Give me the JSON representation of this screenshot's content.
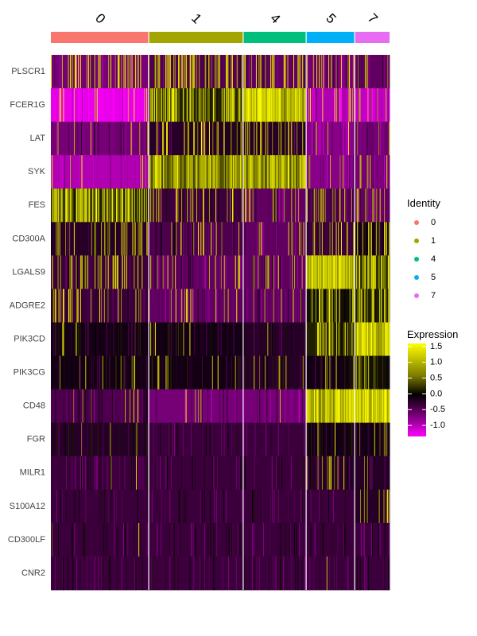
{
  "chart_data": {
    "type": "heatmap",
    "genes": [
      "PLSCR1",
      "FCER1G",
      "LAT",
      "SYK",
      "FES",
      "CD300A",
      "LGALS9",
      "ADGRE2",
      "PIK3CD",
      "PIK3CG",
      "CD48",
      "FGR",
      "MILR1",
      "S100A12",
      "CD300LF",
      "CNR2"
    ],
    "clusters": [
      {
        "label": "0",
        "cells": 230,
        "color": "#F8766D"
      },
      {
        "label": "1",
        "cells": 222,
        "color": "#A3A500"
      },
      {
        "label": "4",
        "cells": 148,
        "color": "#00BF7D"
      },
      {
        "label": "5",
        "cells": 114,
        "color": "#00B0F6"
      },
      {
        "label": "7",
        "cells": 82,
        "color": "#E76BF3"
      }
    ],
    "mean_expression": {
      "PLSCR1": [
        -0.6,
        -0.4,
        -0.5,
        -0.6,
        -0.5
      ],
      "FCER1G": [
        -1.2,
        0.2,
        0.9,
        -0.9,
        -1.0
      ],
      "LAT": [
        -0.6,
        -0.2,
        -0.2,
        -0.7,
        -0.6
      ],
      "SYK": [
        -0.9,
        0.5,
        0.5,
        -0.7,
        -0.6
      ],
      "FES": [
        0.2,
        -0.3,
        -0.5,
        -0.4,
        -0.5
      ],
      "CD300A": [
        -0.2,
        -0.4,
        -0.5,
        -0.3,
        -0.1
      ],
      "LGALS9": [
        -0.3,
        -0.5,
        -0.5,
        0.9,
        0.3
      ],
      "ADGRE2": [
        -0.3,
        -0.5,
        -0.5,
        0.1,
        0.2
      ],
      "PIK3CD": [
        -0.1,
        -0.1,
        -0.2,
        0.2,
        1.0
      ],
      "PIK3CG": [
        -0.1,
        -0.1,
        -0.2,
        -0.1,
        0.1
      ],
      "CD48": [
        -0.4,
        -0.6,
        -0.6,
        0.8,
        1.1
      ],
      "FGR": [
        -0.2,
        -0.3,
        -0.3,
        -0.1,
        -0.1
      ],
      "MILR1": [
        -0.3,
        -0.3,
        -0.3,
        -0.2,
        -0.2
      ],
      "S100A12": [
        -0.3,
        -0.3,
        -0.3,
        -0.3,
        -0.2
      ],
      "CD300LF": [
        -0.3,
        -0.3,
        -0.3,
        -0.3,
        -0.3
      ],
      "CNR2": [
        -0.3,
        -0.3,
        -0.3,
        -0.3,
        -0.3
      ]
    },
    "hot_fraction": {
      "PLSCR1": [
        0.18,
        0.22,
        0.2,
        0.15,
        0.15
      ],
      "FCER1G": [
        0.05,
        0.35,
        0.7,
        0.05,
        0.05
      ],
      "LAT": [
        0.03,
        0.1,
        0.1,
        0.02,
        0.03
      ],
      "SYK": [
        0.05,
        0.35,
        0.35,
        0.05,
        0.08
      ],
      "FES": [
        0.35,
        0.12,
        0.08,
        0.1,
        0.08
      ],
      "CD300A": [
        0.12,
        0.08,
        0.05,
        0.1,
        0.15
      ],
      "LGALS9": [
        0.15,
        0.06,
        0.06,
        0.65,
        0.35
      ],
      "ADGRE2": [
        0.12,
        0.05,
        0.05,
        0.2,
        0.25
      ],
      "PIK3CD": [
        0.02,
        0.02,
        0.01,
        0.2,
        0.55
      ],
      "PIK3CG": [
        0.02,
        0.03,
        0.02,
        0.08,
        0.12
      ],
      "CD48": [
        0.03,
        0.01,
        0.01,
        0.55,
        0.6
      ],
      "FGR": [
        0.03,
        0.0,
        0.0,
        0.06,
        0.05
      ],
      "MILR1": [
        0.01,
        0.0,
        0.0,
        0.05,
        0.03
      ],
      "S100A12": [
        0.0,
        0.0,
        0.0,
        0.0,
        0.12
      ],
      "CD300LF": [
        0.01,
        0.0,
        0.0,
        0.0,
        0.0
      ],
      "CNR2": [
        0.0,
        0.0,
        0.0,
        0.01,
        0.0
      ]
    },
    "color_scale": {
      "low": -1.3,
      "high": 1.6,
      "low_color": "#FF00FF",
      "mid_color": "#000000",
      "high_color": "#FFFF00"
    }
  },
  "legend": {
    "identity_title": "Identity",
    "identity_items": [
      {
        "label": "0",
        "color": "#F8766D"
      },
      {
        "label": "1",
        "color": "#A3A500"
      },
      {
        "label": "4",
        "color": "#00BF7D"
      },
      {
        "label": "5",
        "color": "#00B0F6"
      },
      {
        "label": "7",
        "color": "#E76BF3"
      }
    ],
    "expression_title": "Expression",
    "expression_ticks": [
      {
        "value": 1.5,
        "label": "1.5"
      },
      {
        "value": 1.0,
        "label": "1.0"
      },
      {
        "value": 0.5,
        "label": "0.5"
      },
      {
        "value": 0.0,
        "label": "0.0"
      },
      {
        "value": -0.5,
        "label": "-0.5"
      },
      {
        "value": -1.0,
        "label": "-1.0"
      }
    ]
  }
}
